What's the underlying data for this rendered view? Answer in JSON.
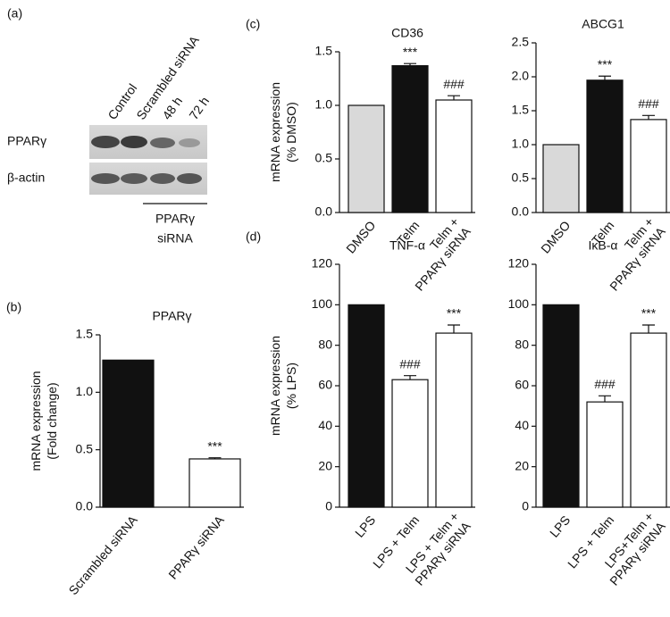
{
  "blot": {
    "panel": "(a)",
    "lanes": [
      "Control",
      "Scrambled siRNA",
      "48 h",
      "72 h"
    ],
    "rows": [
      "PPARγ",
      "β-actin"
    ],
    "bracket": [
      "PPARγ",
      "siRNA"
    ]
  },
  "chart_data": [
    {
      "type": "bar",
      "panel": "(b)",
      "title": "PPARγ",
      "ylabel": [
        "mRNA expression",
        "(Fold change)"
      ],
      "categories": [
        [
          "Scrambled siRNA"
        ],
        [
          "PPARγ siRNA"
        ]
      ],
      "values": [
        1.28,
        0.42
      ],
      "errors": [
        0,
        0.01
      ],
      "colors": [
        "#111111",
        "#ffffff"
      ],
      "value_annotations": [
        null,
        "***"
      ],
      "ylim": [
        0,
        1.5
      ],
      "yticks": [
        {
          "value": 0,
          "label": "0.0"
        },
        0.5,
        {
          "value": 1,
          "label": "1.0"
        },
        1.5
      ]
    },
    {
      "type": "bar",
      "panel": "(c)",
      "title": "CD36",
      "ylabel": [
        "mRNA expression",
        "(% DMSO)"
      ],
      "categories": [
        [
          "DMSO"
        ],
        [
          "Telm"
        ],
        [
          "Telm +",
          "PPARγ siRNA"
        ]
      ],
      "values": [
        1.0,
        1.37,
        1.05
      ],
      "errors": [
        0,
        0.02,
        0.04
      ],
      "colors": [
        "#d9d9d9",
        "#111111",
        "#ffffff"
      ],
      "value_annotations": [
        null,
        "***",
        "###"
      ],
      "ylim": [
        0,
        1.5
      ],
      "yticks": [
        {
          "value": 0,
          "label": "0.0"
        },
        0.5,
        {
          "value": 1,
          "label": "1.0"
        },
        1.5
      ]
    },
    {
      "type": "bar",
      "title": "ABCG1",
      "categories": [
        [
          "DMSO"
        ],
        [
          "Telm"
        ],
        [
          "Telm +",
          "PPARγ siRNA"
        ]
      ],
      "values": [
        1.0,
        1.95,
        1.37
      ],
      "errors": [
        0,
        0.06,
        0.06
      ],
      "colors": [
        "#d9d9d9",
        "#111111",
        "#ffffff"
      ],
      "value_annotations": [
        null,
        "***",
        "###"
      ],
      "ylim": [
        0,
        2.5
      ],
      "yticks": [
        {
          "value": 0,
          "label": "0.0"
        },
        0.5,
        {
          "value": 1,
          "label": "1.0"
        },
        1.5,
        {
          "value": 2,
          "label": "2.0"
        },
        2.5
      ]
    },
    {
      "type": "bar",
      "panel": "(d)",
      "title": "TNF-α",
      "ylabel": [
        "mRNA expression",
        "(% LPS)"
      ],
      "categories": [
        [
          "LPS"
        ],
        [
          "LPS + Telm"
        ],
        [
          "LPS + Telm +",
          "PPARγ siRNA"
        ]
      ],
      "values": [
        100,
        63,
        86
      ],
      "errors": [
        0,
        2,
        4
      ],
      "colors": [
        "#111111",
        "#ffffff",
        "#ffffff"
      ],
      "value_annotations": [
        null,
        "###",
        "***"
      ],
      "ylim": [
        0,
        120
      ],
      "yticks": [
        0,
        20,
        40,
        60,
        80,
        100,
        120
      ]
    },
    {
      "type": "bar",
      "title": "IκB-α",
      "categories": [
        [
          "LPS"
        ],
        [
          "LPS + Telm"
        ],
        [
          "LPS+Telm +",
          "PPARγ siRNA"
        ]
      ],
      "values": [
        100,
        52,
        86
      ],
      "errors": [
        0,
        3,
        4
      ],
      "colors": [
        "#111111",
        "#ffffff",
        "#ffffff"
      ],
      "value_annotations": [
        null,
        "###",
        "***"
      ],
      "ylim": [
        0,
        120
      ],
      "yticks": [
        0,
        20,
        40,
        60,
        80,
        100,
        120
      ]
    }
  ]
}
